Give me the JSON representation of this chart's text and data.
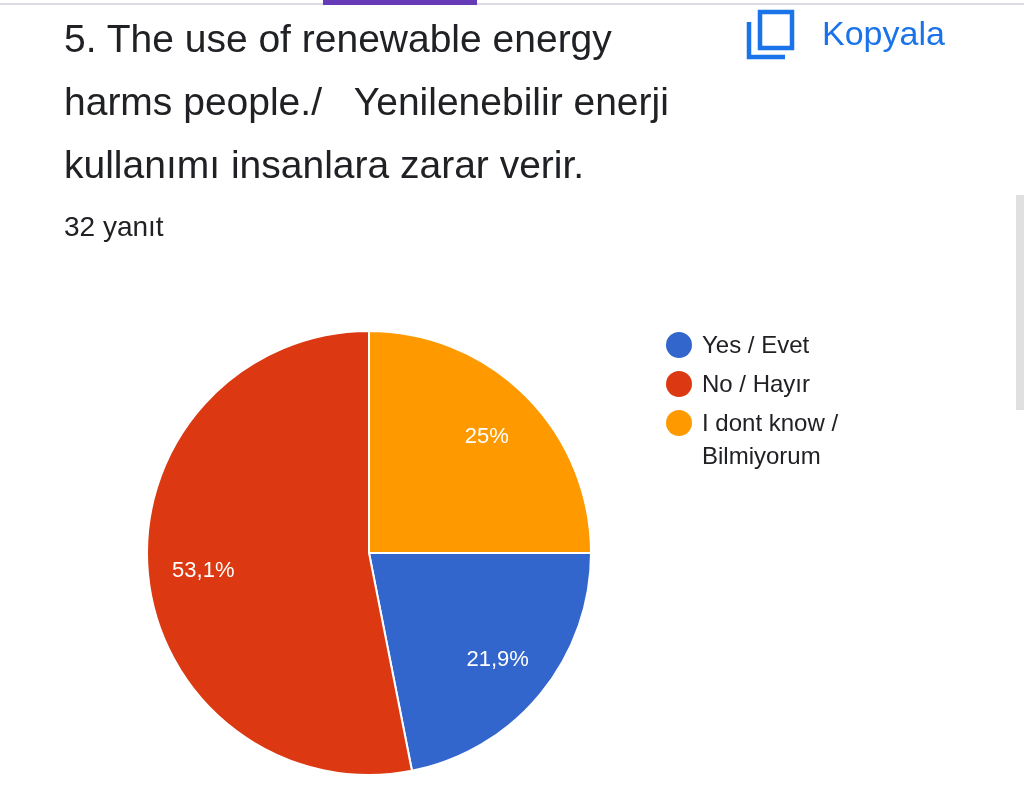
{
  "chart_data": {
    "type": "pie",
    "title": "5. The use of renewable energy harms people./   Yenilenebilir enerji kullanımı insanlara zarar verir.",
    "subtitle": "32 yanıt",
    "categories": [
      "Yes / Evet",
      "No / Hayır",
      "I dont know / Bilmiyorum"
    ],
    "values": [
      21.9,
      53.1,
      25
    ],
    "colors": [
      "#3366cc",
      "#dc3912",
      "#ff9900"
    ],
    "value_labels": [
      "21,9%",
      "53,1%",
      "25%"
    ],
    "legend": "right",
    "annotations": [
      "Kopyala"
    ]
  }
}
